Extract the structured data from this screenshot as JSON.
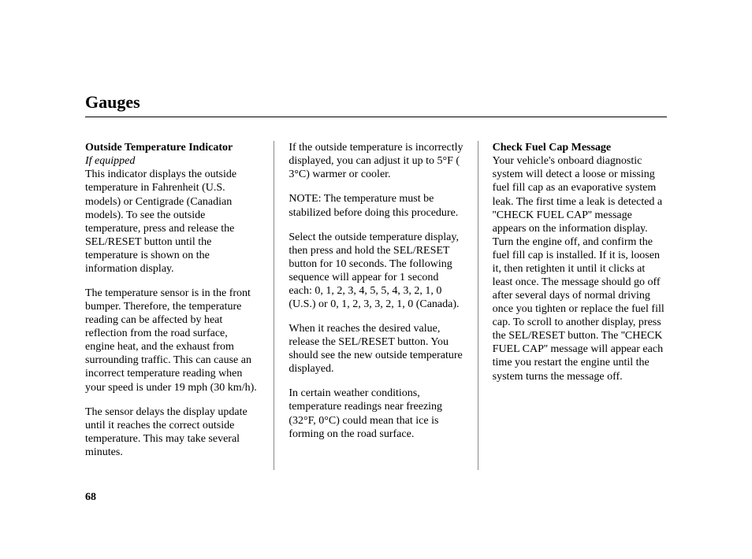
{
  "page": {
    "title": "Gauges",
    "number": "68"
  },
  "col1": {
    "heading": "Outside Temperature Indicator",
    "sub": "If equipped",
    "p1": "This indicator displays the outside temperature in Fahrenheit (U.S. models) or Centigrade (Canadian models). To see the outside temperature, press and release the SEL/RESET button until the temperature is shown on the information display.",
    "p2": "The temperature sensor is in the front bumper. Therefore, the temperature reading can be affected by heat reflection from the road surface, engine heat, and the exhaust from surrounding traffic. This can cause an incorrect temperature reading when your speed is under 19 mph (30 km/h).",
    "p3": "The sensor delays the display update until it reaches the correct outside temperature. This may take several minutes."
  },
  "col2": {
    "p1": "If the outside temperature is incorrectly displayed, you can adjust it up to  5°F (  3°C) warmer or cooler.",
    "p2": "NOTE: The temperature must be stabilized before doing this procedure.",
    "p3": "Select the outside temperature display, then press and hold the SEL/RESET button for 10 seconds. The following sequence will appear for 1 second each: 0, 1, 2, 3, 4, 5,  5,  4,  3,  2,  1, 0 (U.S.) or 0, 1, 2, 3,  3,  2,  1, 0 (Canada).",
    "p4": "When it reaches the desired value, release the SEL/RESET button. You should see the new outside temperature displayed.",
    "p5": "In certain weather conditions, temperature readings near freezing (32°F, 0°C) could mean that ice is forming on the road surface."
  },
  "col3": {
    "heading": "Check Fuel Cap Message",
    "p1": "Your vehicle's onboard diagnostic system will detect a loose or missing fuel fill cap as an evaporative system leak. The first time a leak is detected a ''CHECK FUEL CAP'' message appears on the information display. Turn the engine off, and confirm the fuel fill cap is installed. If it is, loosen it, then retighten it until it clicks at least once. The message should go off after several days of normal driving once you tighten or replace the fuel fill cap. To scroll to another display, press the SEL/RESET button. The ''CHECK FUEL CAP'' message will appear each time you restart the engine until the system turns the message off."
  }
}
